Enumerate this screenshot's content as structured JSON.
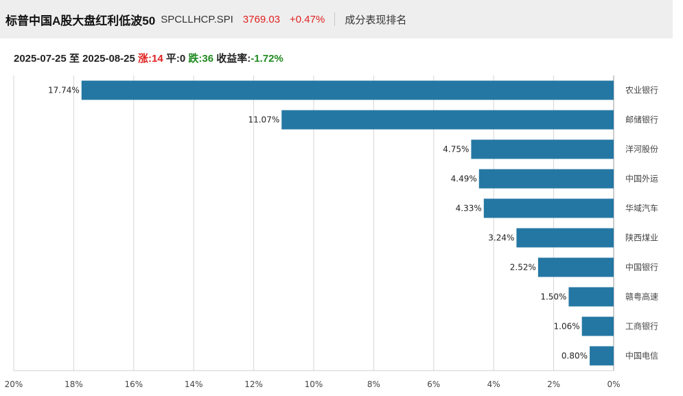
{
  "header": {
    "title": "标普中国A股大盘红利低波50",
    "code": "SPCLLHCP.SPI",
    "price": "3769.03",
    "change": "+0.47%",
    "link": "成分表现排名"
  },
  "stats": {
    "date_from": "2025-07-25",
    "to_word": "至",
    "date_to": "2025-08-25",
    "up_label": "涨:",
    "up_count": "14",
    "flat_label": "平:",
    "flat_count": "0",
    "down_label": "跌:",
    "down_count": "36",
    "return_label": "收益率:",
    "return_value": "-1.72%"
  },
  "colors": {
    "bar": "#2577a3",
    "grid": "#d5d5d5",
    "up": "#e0201f",
    "down": "#1f8a1f"
  },
  "chart_data": {
    "type": "bar",
    "orientation": "horizontal",
    "x_reversed": true,
    "categories": [
      "农业银行",
      "邮储银行",
      "洋河股份",
      "中国外运",
      "华域汽车",
      "陕西煤业",
      "中国银行",
      "赣粤高速",
      "工商银行",
      "中国电信"
    ],
    "values": [
      17.74,
      11.07,
      4.75,
      4.49,
      4.33,
      3.24,
      2.52,
      1.5,
      1.06,
      0.8
    ],
    "value_labels": [
      "17.74%",
      "11.07%",
      "4.75%",
      "4.49%",
      "4.33%",
      "3.24%",
      "2.52%",
      "1.50%",
      "1.06%",
      "0.80%"
    ],
    "xlim": [
      0,
      20
    ],
    "xticks": [
      20,
      18,
      16,
      14,
      12,
      10,
      8,
      6,
      4,
      2,
      0
    ],
    "xtick_labels": [
      "20%",
      "18%",
      "16%",
      "14%",
      "12%",
      "10%",
      "8%",
      "6%",
      "4%",
      "2%",
      "0%"
    ],
    "grid": true
  }
}
